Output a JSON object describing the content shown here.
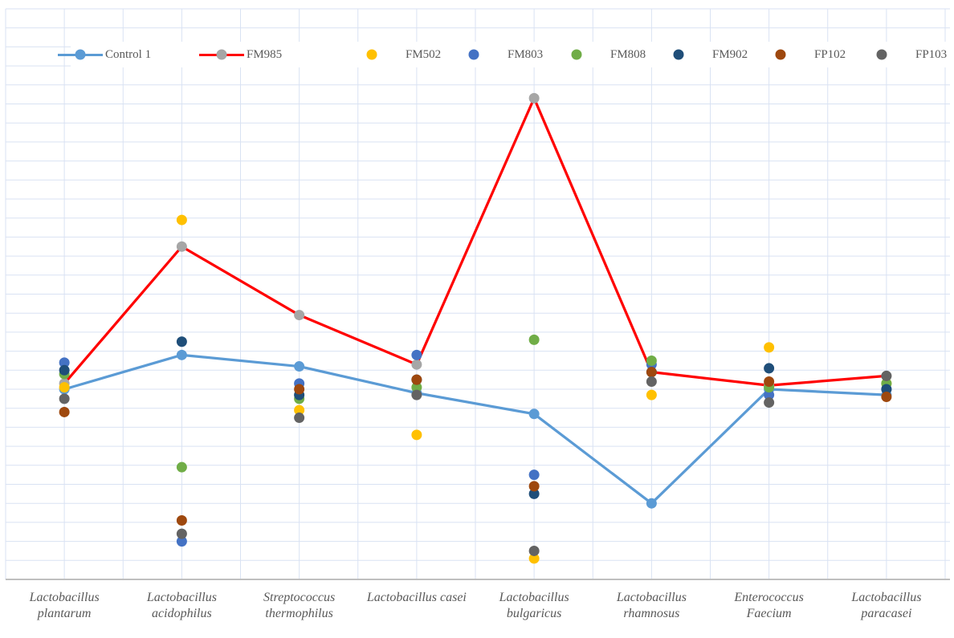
{
  "chart_data": {
    "type": "line",
    "categories": [
      [
        "Lactobacillus",
        "plantarum"
      ],
      [
        "Lactobacillus",
        "acidophilus"
      ],
      [
        "Streptococcus",
        "thermophilus"
      ],
      [
        "Lactobacillus casei"
      ],
      [
        "Lactobacillus",
        "bulgaricus"
      ],
      [
        "Lactobacillus",
        "rhamnosus"
      ],
      [
        "Enterococcus",
        "Faecium"
      ],
      [
        "Lactobacillus",
        "paracasei"
      ]
    ],
    "ylim": [
      0,
      30
    ],
    "y_axis_labels_visible": false,
    "grid": true,
    "legend_position": "top",
    "values_unit": "vertical gridline steps above the x-axis (y-axis is unlabeled in the source image)",
    "series": [
      {
        "name": "Control 1",
        "type": "line-marker",
        "line_color": "#5B9BD5",
        "marker_color": "#5B9BD5",
        "values": [
          10.0,
          11.8,
          11.2,
          9.8,
          8.7,
          4.0,
          10.0,
          9.7
        ]
      },
      {
        "name": "FM985",
        "type": "line-marker",
        "line_color": "#FF0000",
        "marker_color": "#A6A6A6",
        "values": [
          10.3,
          17.5,
          13.9,
          11.3,
          25.3,
          10.9,
          10.2,
          10.7
        ]
      },
      {
        "name": "FM502",
        "type": "scatter",
        "marker_color": "#FFC000",
        "values": [
          10.1,
          18.9,
          8.9,
          7.6,
          1.1,
          9.7,
          12.2,
          10.3
        ]
      },
      {
        "name": "FM803",
        "type": "scatter",
        "marker_color": "#4472C4",
        "values": [
          11.4,
          2.0,
          10.3,
          11.8,
          5.5,
          11.3,
          9.7,
          10.0
        ]
      },
      {
        "name": "FM808",
        "type": "scatter",
        "marker_color": "#70AD47",
        "values": [
          10.8,
          5.9,
          9.5,
          10.1,
          12.6,
          11.5,
          10.1,
          10.3
        ]
      },
      {
        "name": "FM902",
        "type": "scatter",
        "marker_color": "#1F4E79",
        "values": [
          11.0,
          12.5,
          9.7,
          10.5,
          4.5,
          10.9,
          11.1,
          10.0
        ]
      },
      {
        "name": "FP102",
        "type": "scatter",
        "marker_color": "#9E480E",
        "values": [
          8.8,
          3.1,
          10.0,
          10.5,
          4.9,
          10.9,
          10.4,
          9.6
        ]
      },
      {
        "name": "FP103",
        "type": "scatter",
        "marker_color": "#636363",
        "values": [
          9.5,
          2.4,
          8.5,
          9.7,
          1.5,
          10.4,
          9.3,
          10.7
        ]
      }
    ]
  },
  "colors": {
    "gridline": "#D9E2F3",
    "axis_line": "#BFBFBF",
    "text": "#595959",
    "background": "#FFFFFF"
  }
}
